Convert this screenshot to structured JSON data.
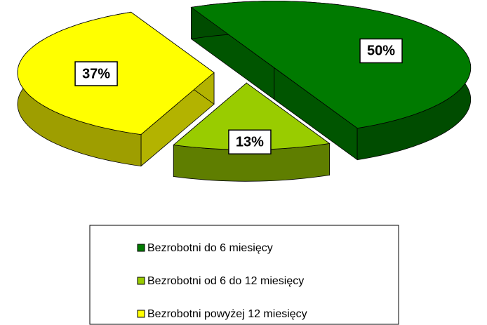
{
  "chart_data": {
    "type": "pie",
    "categories": [
      "Bezrobotni do 6 miesięcy",
      "Bezrobotni od 6 do 12 miesięcy",
      "Bezrobotni powyżej 12 miesięcy"
    ],
    "values": [
      50,
      13,
      37
    ],
    "value_labels": [
      "50%",
      "13%",
      "37%"
    ],
    "colors": [
      "#007a00",
      "#99cc00",
      "#ffff00"
    ],
    "legend": "bottom"
  }
}
